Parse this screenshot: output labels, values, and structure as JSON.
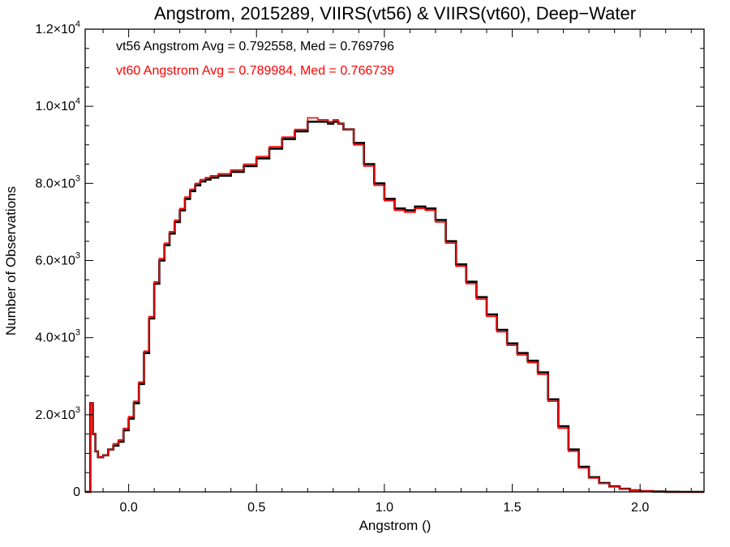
{
  "chart_data": {
    "type": "line",
    "title": "Angstrom, 2015289, VIIRS(vt56) & VIIRS(vt60), Deep−Water",
    "xlabel": "Angstrom ()",
    "ylabel": "Number of Observations",
    "xlim": [
      -0.17,
      2.25
    ],
    "ylim": [
      0,
      12000
    ],
    "x_ticks": [
      {
        "value": 0.0,
        "label": "0.0"
      },
      {
        "value": 0.5,
        "label": "0.5"
      },
      {
        "value": 1.0,
        "label": "1.0"
      },
      {
        "value": 1.5,
        "label": "1.5"
      },
      {
        "value": 2.0,
        "label": "2.0"
      }
    ],
    "y_ticks": [
      {
        "value": 0,
        "label": "0",
        "exp": ""
      },
      {
        "value": 2000,
        "label": "2.0×10",
        "exp": "3"
      },
      {
        "value": 4000,
        "label": "4.0×10",
        "exp": "3"
      },
      {
        "value": 6000,
        "label": "6.0×10",
        "exp": "3"
      },
      {
        "value": 8000,
        "label": "8.0×10",
        "exp": "3"
      },
      {
        "value": 10000,
        "label": "1.0×10",
        "exp": "4"
      },
      {
        "value": 12000,
        "label": "1.2×10",
        "exp": "4"
      }
    ],
    "grid": false,
    "annotations": [
      {
        "text": "vt56 Angstrom Avg = 0.792558, Med = 0.769796",
        "color": "#000000"
      },
      {
        "text": "vt60 Angstrom Avg = 0.789984, Med = 0.766739",
        "color": "#ff0000"
      }
    ],
    "series": [
      {
        "name": "vt56",
        "color": "#000000",
        "x": [
          -0.17,
          -0.15,
          -0.14,
          -0.13,
          -0.12,
          -0.1,
          -0.08,
          -0.06,
          -0.04,
          -0.02,
          0.0,
          0.02,
          0.04,
          0.06,
          0.08,
          0.1,
          0.12,
          0.14,
          0.16,
          0.18,
          0.2,
          0.22,
          0.24,
          0.26,
          0.28,
          0.3,
          0.32,
          0.35,
          0.4,
          0.45,
          0.5,
          0.55,
          0.6,
          0.65,
          0.7,
          0.74,
          0.78,
          0.8,
          0.82,
          0.84,
          0.88,
          0.92,
          0.96,
          1.0,
          1.04,
          1.08,
          1.12,
          1.16,
          1.2,
          1.24,
          1.28,
          1.32,
          1.36,
          1.4,
          1.44,
          1.48,
          1.52,
          1.56,
          1.6,
          1.64,
          1.68,
          1.72,
          1.76,
          1.8,
          1.84,
          1.88,
          1.92,
          1.96,
          2.0,
          2.05,
          2.1,
          2.15,
          2.2,
          2.25
        ],
        "y": [
          0,
          2300,
          1500,
          1050,
          900,
          950,
          1100,
          1200,
          1300,
          1600,
          1900,
          2300,
          2800,
          3600,
          4500,
          5400,
          6000,
          6400,
          6700,
          7000,
          7300,
          7600,
          7800,
          7950,
          8050,
          8100,
          8150,
          8200,
          8300,
          8450,
          8650,
          8900,
          9150,
          9350,
          9600,
          9600,
          9550,
          9600,
          9550,
          9400,
          9050,
          8500,
          8000,
          7600,
          7350,
          7300,
          7400,
          7350,
          7050,
          6500,
          5900,
          5450,
          5050,
          4600,
          4200,
          3850,
          3600,
          3400,
          3100,
          2400,
          1700,
          1100,
          650,
          380,
          230,
          140,
          80,
          40,
          20,
          8,
          3,
          0,
          0,
          0
        ]
      },
      {
        "name": "vt60",
        "color": "#ff0000",
        "x": [
          -0.17,
          -0.15,
          -0.14,
          -0.13,
          -0.12,
          -0.1,
          -0.08,
          -0.06,
          -0.04,
          -0.02,
          0.0,
          0.02,
          0.04,
          0.06,
          0.08,
          0.1,
          0.12,
          0.14,
          0.16,
          0.18,
          0.2,
          0.22,
          0.24,
          0.26,
          0.28,
          0.3,
          0.32,
          0.35,
          0.4,
          0.45,
          0.5,
          0.55,
          0.6,
          0.65,
          0.7,
          0.74,
          0.78,
          0.8,
          0.82,
          0.84,
          0.88,
          0.92,
          0.96,
          1.0,
          1.04,
          1.08,
          1.12,
          1.16,
          1.2,
          1.24,
          1.28,
          1.32,
          1.36,
          1.4,
          1.44,
          1.48,
          1.52,
          1.56,
          1.6,
          1.64,
          1.68,
          1.72,
          1.76,
          1.8,
          1.84,
          1.88,
          1.92,
          1.96,
          2.0,
          2.05,
          2.1,
          2.15,
          2.2,
          2.25
        ],
        "y": [
          0,
          2300,
          1500,
          1050,
          900,
          950,
          1100,
          1250,
          1350,
          1650,
          1950,
          2350,
          2850,
          3650,
          4550,
          5450,
          6050,
          6450,
          6750,
          7050,
          7350,
          7650,
          7850,
          8000,
          8100,
          8150,
          8200,
          8250,
          8350,
          8500,
          8700,
          8950,
          9200,
          9400,
          9700,
          9650,
          9600,
          9650,
          9550,
          9400,
          9000,
          8450,
          7950,
          7550,
          7300,
          7250,
          7350,
          7300,
          7000,
          6450,
          5850,
          5400,
          5000,
          4550,
          4150,
          3800,
          3550,
          3350,
          3050,
          2350,
          1650,
          1050,
          620,
          360,
          220,
          130,
          75,
          38,
          18,
          7,
          2,
          0,
          0,
          0
        ]
      }
    ]
  }
}
